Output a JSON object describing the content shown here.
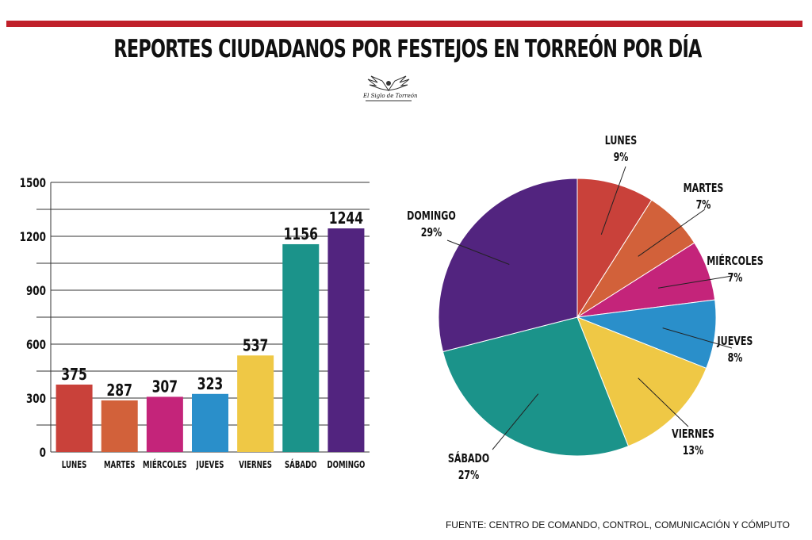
{
  "title": "REPORTES CIUDADANOS POR FESTEJOS EN TORREÓN POR DÍA",
  "logo": {
    "name": "El Siglo de Torreón"
  },
  "source": "FUENTE:  CENTRO DE COMANDO, CONTROL, COMUNICACIÓN Y CÓMPUTO",
  "colors": {
    "accent": "#c0202a",
    "lunes": "#c9413a",
    "martes": "#d2613a",
    "miercoles": "#c4247a",
    "jueves": "#2a8fca",
    "viernes": "#efc845",
    "sabado": "#1b938a",
    "domingo": "#52247f"
  },
  "chart_data": [
    {
      "type": "bar",
      "categories": [
        "LUNES",
        "MARTES",
        "MIÉRCOLES",
        "JUEVES",
        "VIERNES",
        "SÁBADO",
        "DOMINGO"
      ],
      "values": [
        375,
        287,
        307,
        323,
        537,
        1156,
        1244
      ],
      "ylim": [
        0,
        1500
      ],
      "yticks": [
        0,
        300,
        600,
        900,
        1200,
        1500
      ],
      "grid": true,
      "xlabel": "",
      "ylabel": ""
    },
    {
      "type": "pie",
      "labels": [
        "LUNES",
        "MARTES",
        "MIÉRCOLES",
        "JUEVES",
        "VIERNES",
        "SÁBADO",
        "DOMINGO"
      ],
      "values": [
        9,
        7,
        7,
        8,
        13,
        27,
        29
      ],
      "value_labels": [
        "9%",
        "7%",
        "7%",
        "8%",
        "13%",
        "27%",
        "29%"
      ]
    }
  ]
}
